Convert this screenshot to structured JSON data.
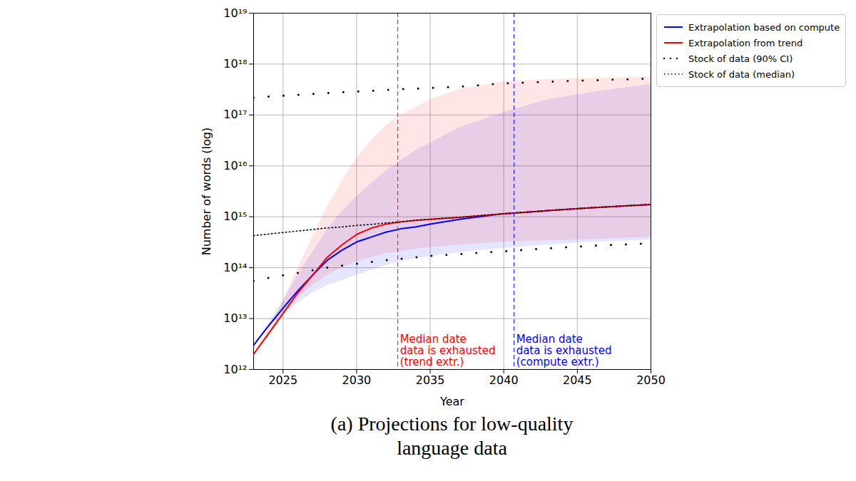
{
  "chart_data": {
    "type": "line",
    "caption": "(a) Projections for low-quality language data",
    "xlabel": "Year",
    "ylabel": "Number of words (log)",
    "log": "y",
    "grid": true,
    "legend": "right",
    "xlim": [
      2023,
      2050
    ],
    "xticks": [
      2025,
      2030,
      2035,
      2040,
      2045,
      2050
    ],
    "ylim": [
      1000000000000.0,
      1e+19
    ],
    "yticks": [
      {
        "value": 1000000000000.0,
        "label": "10¹²"
      },
      {
        "value": 10000000000000.0,
        "label": "10¹³"
      },
      {
        "value": 100000000000000.0,
        "label": "10¹⁴"
      },
      {
        "value": 1000000000000000.0,
        "label": "10¹⁵"
      },
      {
        "value": 1e+16,
        "label": "10¹⁶"
      },
      {
        "value": 1e+17,
        "label": "10¹⁷"
      },
      {
        "value": 1e+18,
        "label": "10¹⁸"
      },
      {
        "value": 1e+19,
        "label": "10¹⁹"
      }
    ],
    "x": [
      2023,
      2024,
      2025,
      2026,
      2027,
      2028,
      2029,
      2030,
      2031,
      2032,
      2033,
      2034,
      2035,
      2037,
      2040,
      2043,
      2046,
      2050
    ],
    "series": [
      {
        "name": "Extrapolation based on compute",
        "color": "#0000ff",
        "line_style": "solid",
        "values": [
          3000000000000.0,
          7100000000000.0,
          16000000000000.0,
          35000000000000.0,
          71000000000000.0,
          140000000000000.0,
          220000000000000.0,
          320000000000000.0,
          400000000000000.0,
          500000000000000.0,
          580000000000000.0,
          630000000000000.0,
          720000000000000.0,
          890000000000000.0,
          1150000000000000.0,
          1320000000000000.0,
          1510000000000000.0,
          1740000000000000.0
        ],
        "lower": [
          3000000000000.0,
          6600000000000.0,
          12600000000000.0,
          20000000000000.0,
          32000000000000.0,
          45000000000000.0,
          56000000000000.0,
          71000000000000.0,
          89000000000000.0,
          112000000000000.0,
          132000000000000.0,
          151000000000000.0,
          166000000000000.0,
          200000000000000.0,
          240000000000000.0,
          280000000000000.0,
          320000000000000.0,
          350000000000000.0
        ],
        "upper": [
          3000000000000.0,
          7900000000000.0,
          22000000000000.0,
          71000000000000.0,
          200000000000000.0,
          560000000000000.0,
          1260000000000000.0,
          2500000000000000.0,
          4500000000000000.0,
          7900000000000000.0,
          1.26e+16,
          2e+16,
          2.8e+16,
          5.6e+16,
          1.12e+17,
          2e+17,
          2.8e+17,
          4e+17
        ]
      },
      {
        "name": "Extrapolation from trend",
        "color": "#ff0000",
        "line_style": "solid",
        "values": [
          2000000000000.0,
          5000000000000.0,
          12600000000000.0,
          32000000000000.0,
          71000000000000.0,
          160000000000000.0,
          280000000000000.0,
          450000000000000.0,
          600000000000000.0,
          720000000000000.0,
          794000000000000.0,
          851000000000000.0,
          891000000000000.0,
          977000000000000.0,
          1150000000000000.0,
          1320000000000000.0,
          1510000000000000.0,
          1740000000000000.0
        ],
        "lower": [
          2000000000000.0,
          4800000000000.0,
          11000000000000.0,
          25000000000000.0,
          45000000000000.0,
          71000000000000.0,
          100000000000000.0,
          132000000000000.0,
          158000000000000.0,
          190000000000000.0,
          210000000000000.0,
          230000000000000.0,
          250000000000000.0,
          280000000000000.0,
          320000000000000.0,
          340000000000000.0,
          360000000000000.0,
          400000000000000.0
        ],
        "upper": [
          2000000000000.0,
          6300000000000.0,
          22000000000000.0,
          100000000000000.0,
          400000000000000.0,
          1580000000000000.0,
          5000000000000000.0,
          1.4e+16,
          3.2e+16,
          6.3e+16,
          1e+17,
          1.4e+17,
          2e+17,
          3.2e+17,
          4.5e+17,
          5e+17,
          5.25e+17,
          5.6e+17
        ]
      },
      {
        "name": "Stock of data (90% CI)",
        "color": "#000000",
        "line_style": "loosely dotted",
        "lower": [
          55000000000000.0,
          63000000000000.0,
          71000000000000.0,
          79000000000000.0,
          89000000000000.0,
          100000000000000.0,
          110000000000000.0,
          120000000000000.0,
          130000000000000.0,
          140000000000000.0,
          150000000000000.0,
          160000000000000.0,
          170000000000000.0,
          185000000000000.0,
          210000000000000.0,
          240000000000000.0,
          270000000000000.0,
          300000000000000.0
        ],
        "upper": [
          2.2e+17,
          2.3e+17,
          2.4e+17,
          2.5e+17,
          2.6e+17,
          2.7e+17,
          2.8e+17,
          2.9e+17,
          3e+17,
          3.1e+17,
          3.2e+17,
          3.3e+17,
          3.4e+17,
          3.6e+17,
          4.2e+17,
          4.5e+17,
          4.8e+17,
          5.2e+17
        ]
      },
      {
        "name": "Stock of data (median)",
        "color": "#000000",
        "line_style": "dotted",
        "values": [
          427000000000000.0,
          457000000000000.0,
          490000000000000.0,
          525000000000000.0,
          562000000000000.0,
          603000000000000.0,
          631000000000000.0,
          676000000000000.0,
          708000000000000.0,
          759000000000000.0,
          794000000000000.0,
          851000000000000.0,
          891000000000000.0,
          977000000000000.0,
          1150000000000000.0,
          1320000000000000.0,
          1510000000000000.0,
          1740000000000000.0
        ]
      }
    ],
    "annotations": [
      {
        "x": 2032.8,
        "text": "Median date\ndata is exhausted\n(trend extr.)",
        "color": "#ff0000",
        "line_style": "dashed"
      },
      {
        "x": 2040.7,
        "text": "Median date\ndata is exhausted\n(compute extr.)",
        "color": "#0000ff",
        "line_style": "dashed"
      }
    ]
  }
}
